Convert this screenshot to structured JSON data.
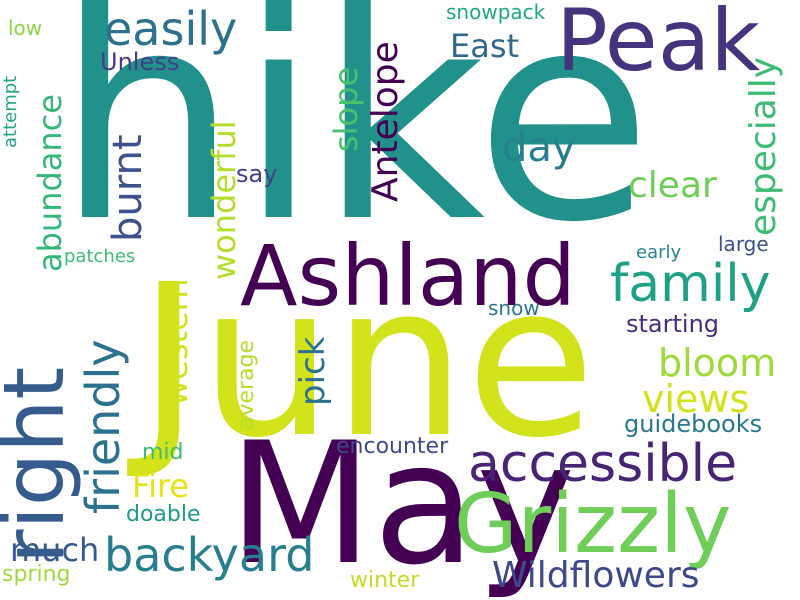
{
  "words": [
    {
      "text": "hike",
      "color": "#21918c"
    },
    {
      "text": "June",
      "color": "#d2e21b"
    },
    {
      "text": "May",
      "color": "#440154"
    },
    {
      "text": "Peak",
      "color": "#46337e"
    },
    {
      "text": "Ashland",
      "color": "#440154"
    },
    {
      "text": "right",
      "color": "#365c8d"
    },
    {
      "text": "Grizzly",
      "color": "#6ece58"
    },
    {
      "text": "accessible",
      "color": "#482475"
    },
    {
      "text": "family",
      "color": "#1fa187"
    },
    {
      "text": "backyard",
      "color": "#277f8e"
    },
    {
      "text": "friendly",
      "color": "#2c718e"
    },
    {
      "text": "easily",
      "color": "#2c728e"
    },
    {
      "text": "Antelope",
      "color": "#440154"
    },
    {
      "text": "especially",
      "color": "#3dbc74"
    },
    {
      "text": "Wildflowers",
      "color": "#3e4989"
    },
    {
      "text": "bloom",
      "color": "#9fda3a"
    },
    {
      "text": "views",
      "color": "#d2e21b"
    },
    {
      "text": "abundance",
      "color": "#35b779"
    },
    {
      "text": "burnt",
      "color": "#3b528b"
    },
    {
      "text": "wonderful",
      "color": "#b5de2b"
    },
    {
      "text": "western",
      "color": "#d2e21b"
    },
    {
      "text": "clear",
      "color": "#6ece58"
    },
    {
      "text": "slope",
      "color": "#4ac16d"
    },
    {
      "text": "day",
      "color": "#277f8e"
    },
    {
      "text": "East",
      "color": "#31688e"
    },
    {
      "text": "pick",
      "color": "#2c728e"
    },
    {
      "text": "much",
      "color": "#375a8c"
    },
    {
      "text": "Fire",
      "color": "#e5e419"
    },
    {
      "text": "guidebooks",
      "color": "#2a788e"
    },
    {
      "text": "starting",
      "color": "#472d7b"
    },
    {
      "text": "Unless",
      "color": "#433e85"
    },
    {
      "text": "say",
      "color": "#424086"
    },
    {
      "text": "average",
      "color": "#b5de2b"
    },
    {
      "text": "encounter",
      "color": "#3e4989"
    },
    {
      "text": "doable",
      "color": "#1e9c89"
    },
    {
      "text": "spring",
      "color": "#9fda3a"
    },
    {
      "text": "winter",
      "color": "#c2df23"
    },
    {
      "text": "mid",
      "color": "#3dbc74"
    },
    {
      "text": "snowpack",
      "color": "#22a785"
    },
    {
      "text": "snow",
      "color": "#2a788e"
    },
    {
      "text": "large",
      "color": "#3b528b"
    },
    {
      "text": "early",
      "color": "#25848e"
    },
    {
      "text": "patches",
      "color": "#3dbc74"
    },
    {
      "text": "low",
      "color": "#8bd646"
    },
    {
      "text": "attempt",
      "color": "#22a785"
    }
  ]
}
